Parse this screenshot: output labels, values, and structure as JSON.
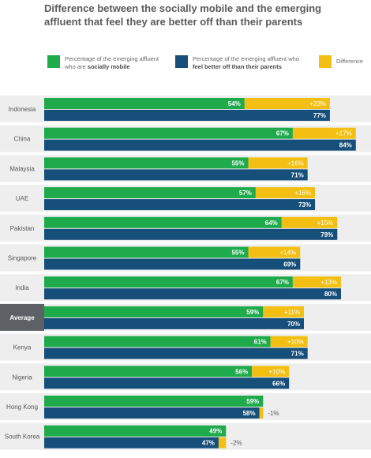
{
  "title": {
    "line1": "Difference between the socially mobile and the emerging",
    "line2": "affluent that feel they are better off than their parents"
  },
  "legend": {
    "socially_mobile": {
      "text": "Percentage of the emerging affluent",
      "text2_pre": "who are ",
      "text2_bold": "socially mobile",
      "color": "#1faa4b"
    },
    "better_off": {
      "text": "Percentage of the emerging affluent who",
      "text2_bold": "feel better off than their parents",
      "color": "#164f7a"
    },
    "difference": {
      "text": "Difference",
      "color": "#f3bf12"
    }
  },
  "colors": {
    "green": "#1faa4b",
    "blue": "#164f7a",
    "yellow": "#f3bf12",
    "row_bg": "#eeeeee",
    "average_bg": "#5d6166"
  },
  "chart_data": {
    "type": "bar",
    "orientation": "horizontal",
    "categories": [
      "Indonesia",
      "China",
      "Malaysia",
      "UAE",
      "Pakistan",
      "Singapore",
      "India",
      "Average",
      "Kenya",
      "Nigeria",
      "Hong Kong",
      "South Korea"
    ],
    "highlight_category": "Average",
    "series": [
      {
        "values": [
          54,
          67,
          55,
          57,
          64,
          55,
          67,
          59,
          61,
          56,
          59,
          49
        ],
        "labels": [
          "54%",
          "67%",
          "55%",
          "57%",
          "64%",
          "55%",
          "67%",
          "59%",
          "61%",
          "56%",
          "59%",
          "49%"
        ]
      },
      {
        "values": [
          77,
          84,
          71,
          73,
          79,
          69,
          80,
          70,
          71,
          66,
          58,
          47
        ],
        "labels": [
          "77%",
          "84%",
          "71%",
          "73%",
          "79%",
          "69%",
          "80%",
          "70%",
          "71%",
          "66%",
          "58%",
          "47%"
        ]
      },
      {
        "values": [
          23,
          17,
          16,
          16,
          15,
          14,
          13,
          11,
          10,
          10,
          -1,
          -2
        ],
        "labels": [
          "+23%",
          "+17%",
          "+16%",
          "+16%",
          "+15%",
          "+14%",
          "+13%",
          "+11%",
          "+10%",
          "+10%",
          "-1%",
          "-2%"
        ]
      }
    ]
  }
}
